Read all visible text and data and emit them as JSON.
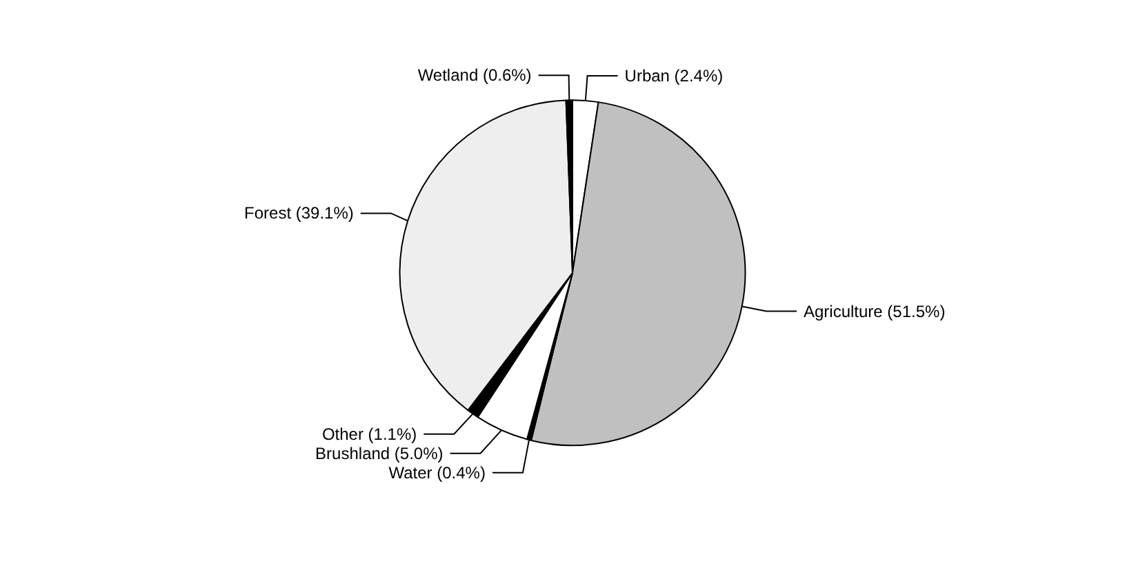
{
  "chart_data": {
    "type": "pie",
    "categories": [
      "Urban",
      "Agriculture",
      "Water",
      "Brushland",
      "Other",
      "Forest",
      "Wetland"
    ],
    "values": [
      2.4,
      51.5,
      0.4,
      5.0,
      1.1,
      39.1,
      0.6
    ],
    "value_labels": [
      "(2.4%)",
      "(51.5%)",
      "(0.4%)",
      "(5.0%)",
      "(1.1%)",
      "(39.1%)",
      "(0.6%)"
    ],
    "colors": [
      "#ffffff",
      "#c0c0c0",
      "#000000",
      "#ffffff",
      "#000000",
      "#eeeeee",
      "#000000"
    ],
    "legend": false
  }
}
